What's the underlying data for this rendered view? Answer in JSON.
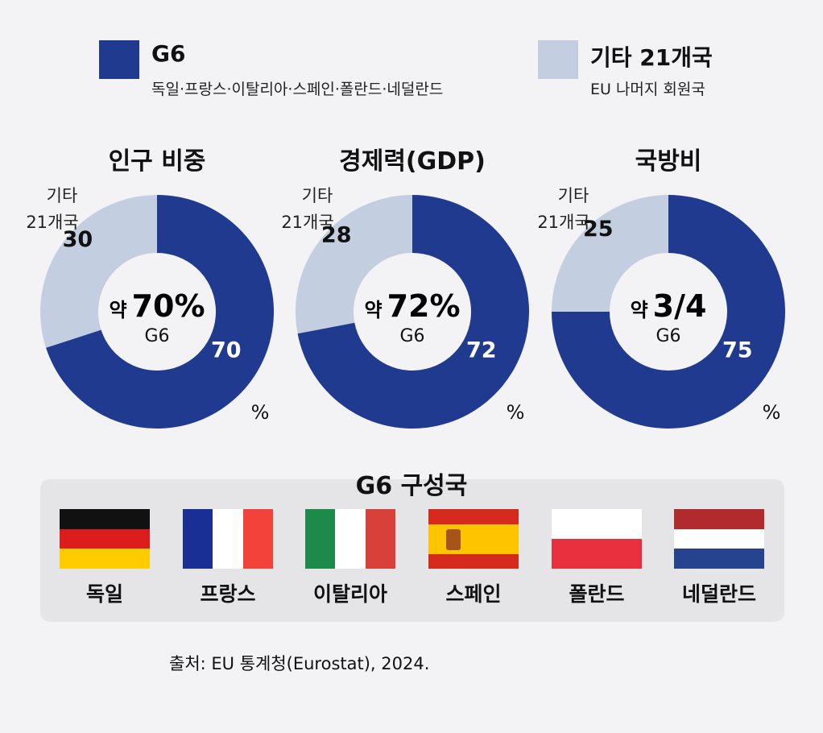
{
  "legend": [
    {
      "title": "G6",
      "subtitle": "독일·프랑스·이탈리아·스페인·폴란드·네덜란드",
      "color": "#1f3a8f"
    },
    {
      "title": "기타 21개국",
      "subtitle": "EU 나머지 회원국",
      "color": "#c3cfe0"
    }
  ],
  "chart_data": [
    {
      "type": "pie",
      "title": "인구 비중",
      "categories": [
        "G6",
        "기타 21개국"
      ],
      "values": [
        70,
        30
      ],
      "unit": "%",
      "other_label": "기타 21개국",
      "center_prefix": "약",
      "center_value": "70%",
      "center_label": "G6",
      "value_labels": [
        "70",
        "30"
      ],
      "unit_label": "%"
    },
    {
      "type": "pie",
      "title": "경제력(GDP)",
      "categories": [
        "G6",
        "기타 21개국"
      ],
      "values": [
        72,
        28
      ],
      "unit": "%",
      "other_label": "기타 21개국",
      "center_prefix": "약",
      "center_value": "72%",
      "center_label": "G6",
      "value_labels": [
        "72",
        "28"
      ],
      "unit_label": "%"
    },
    {
      "type": "pie",
      "title": "국방비",
      "categories": [
        "G6",
        "기타 21개국"
      ],
      "values": [
        75,
        25
      ],
      "unit": "%",
      "other_label": "기타 21개국",
      "center_prefix": "약",
      "center_value": "3/4",
      "center_label": "G6",
      "value_labels": [
        "75",
        "25"
      ],
      "unit_label": "%"
    }
  ],
  "members": {
    "title": "G6 구성국",
    "countries": [
      "독일",
      "프랑스",
      "이탈리아",
      "스페인",
      "폴란드",
      "네덜란드"
    ]
  },
  "source": "출처: EU 통계청(Eurostat), 2024."
}
